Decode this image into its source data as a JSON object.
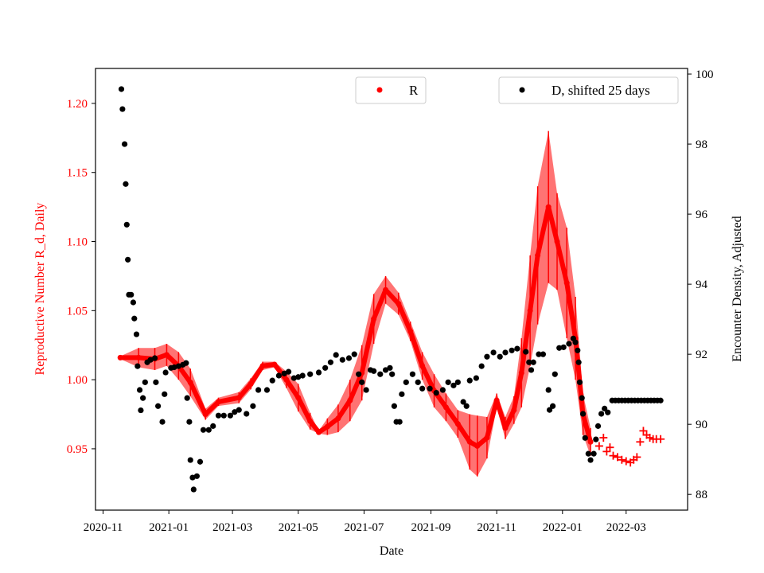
{
  "chart_data": {
    "type": "scatter",
    "xlabel": "Date",
    "ylabel_left": "Reproductive Number R_d, Daily",
    "ylabel_right": "Encounter Density, Adjusted",
    "xlim": [
      "2020-10-25",
      "2022-04-27"
    ],
    "ylim_left": [
      0.9056,
      1.2253
    ],
    "ylim_right": [
      87.55,
      100.16
    ],
    "x_ticks": [
      "2020-11",
      "2021-01",
      "2021-03",
      "2021-05",
      "2021-07",
      "2021-09",
      "2021-11",
      "2022-01",
      "2022-03"
    ],
    "y_ticks_left": [
      "0.95",
      "1.00",
      "1.05",
      "1.10",
      "1.15",
      "1.20"
    ],
    "y_ticks_right": [
      "88",
      "90",
      "92",
      "94",
      "96",
      "98",
      "100"
    ],
    "grid": false,
    "colors": {
      "R": "#ff0000",
      "D": "#000000",
      "left_axis_text": "#ff0000"
    },
    "legends": [
      {
        "label": "R",
        "color": "#ff0000",
        "placement": "top-center"
      },
      {
        "label": "D, shifted 25 days",
        "color": "#000000",
        "placement": "top-right"
      }
    ],
    "series": [
      {
        "name": "R",
        "axis": "left",
        "marker": "dot-with-errorbars",
        "points": [
          [
            "2020-11-17",
            1.016,
            0.001
          ],
          [
            "2020-12-04",
            1.016,
            0.007
          ],
          [
            "2020-12-19",
            1.015,
            0.008
          ],
          [
            "2020-12-30",
            1.018,
            0.008
          ],
          [
            "2021-01-10",
            1.01,
            0.01
          ],
          [
            "2021-01-21",
            0.998,
            0.01
          ],
          [
            "2021-02-04",
            0.975,
            0.004
          ],
          [
            "2021-02-16",
            0.984,
            0.003
          ],
          [
            "2021-03-07",
            0.987,
            0.004
          ],
          [
            "2021-03-18",
            0.997,
            0.004
          ],
          [
            "2021-03-29",
            1.01,
            0.003
          ],
          [
            "2021-04-09",
            1.011,
            0.002
          ],
          [
            "2021-04-20",
            1.0,
            0.006
          ],
          [
            "2021-05-01",
            0.987,
            0.01
          ],
          [
            "2021-05-12",
            0.97,
            0.006
          ],
          [
            "2021-05-20",
            0.962,
            0.001
          ],
          [
            "2021-05-28",
            0.966,
            0.006
          ],
          [
            "2021-06-07",
            0.972,
            0.01
          ],
          [
            "2021-06-18",
            0.985,
            0.015
          ],
          [
            "2021-06-29",
            1.005,
            0.02
          ],
          [
            "2021-07-10",
            1.044,
            0.018
          ],
          [
            "2021-07-21",
            1.065,
            0.01
          ],
          [
            "2021-08-02",
            1.055,
            0.008
          ],
          [
            "2021-08-13",
            1.035,
            0.007
          ],
          [
            "2021-08-24",
            1.01,
            0.01
          ],
          [
            "2021-09-04",
            0.992,
            0.012
          ],
          [
            "2021-09-15",
            0.98,
            0.01
          ],
          [
            "2021-09-26",
            0.968,
            0.01
          ],
          [
            "2021-10-07",
            0.955,
            0.02
          ],
          [
            "2021-10-14",
            0.952,
            0.022
          ],
          [
            "2021-10-23",
            0.958,
            0.015
          ],
          [
            "2021-11-01",
            0.985,
            0.005
          ],
          [
            "2021-11-09",
            0.965,
            0.008
          ],
          [
            "2021-11-17",
            0.978,
            0.01
          ],
          [
            "2021-11-24",
            1.005,
            0.025
          ],
          [
            "2021-12-02",
            1.05,
            0.04
          ],
          [
            "2021-12-09",
            1.09,
            0.05
          ],
          [
            "2021-12-19",
            1.125,
            0.055
          ],
          [
            "2021-12-27",
            1.1,
            0.035
          ],
          [
            "2022-01-05",
            1.07,
            0.04
          ],
          [
            "2022-01-13",
            1.03,
            0.03
          ],
          [
            "2022-01-20",
            0.975,
            0.015
          ],
          [
            "2022-01-27",
            0.955,
            0.01
          ]
        ]
      },
      {
        "name": "R",
        "axis": "left",
        "marker": "plus",
        "points": [
          [
            "2022-02-04",
            0.952
          ],
          [
            "2022-02-08",
            0.958
          ],
          [
            "2022-02-11",
            0.948
          ],
          [
            "2022-02-14",
            0.951
          ],
          [
            "2022-02-17",
            0.945
          ],
          [
            "2022-02-21",
            0.944
          ],
          [
            "2022-02-25",
            0.942
          ],
          [
            "2022-03-01",
            0.941
          ],
          [
            "2022-03-05",
            0.94
          ],
          [
            "2022-03-08",
            0.942
          ],
          [
            "2022-03-11",
            0.944
          ],
          [
            "2022-03-14",
            0.955
          ],
          [
            "2022-03-17",
            0.963
          ],
          [
            "2022-03-20",
            0.96
          ],
          [
            "2022-03-23",
            0.958
          ],
          [
            "2022-03-26",
            0.957
          ],
          [
            "2022-03-29",
            0.957
          ],
          [
            "2022-04-02",
            0.957
          ]
        ]
      },
      {
        "name": "D, shifted 25 days",
        "axis": "right",
        "marker": "dot",
        "points": [
          [
            "2020-11-18",
            99.57
          ],
          [
            "2020-11-19",
            99.0
          ],
          [
            "2020-11-21",
            98.0
          ],
          [
            "2020-11-22",
            96.86
          ],
          [
            "2020-11-23",
            95.7
          ],
          [
            "2020-11-24",
            94.7
          ],
          [
            "2020-11-25",
            93.7
          ],
          [
            "2020-11-27",
            93.7
          ],
          [
            "2020-11-29",
            93.48
          ],
          [
            "2020-11-30",
            93.02
          ],
          [
            "2020-12-02",
            92.57
          ],
          [
            "2020-12-03",
            91.66
          ],
          [
            "2020-12-05",
            90.98
          ],
          [
            "2020-12-06",
            90.4
          ],
          [
            "2020-12-08",
            90.75
          ],
          [
            "2020-12-10",
            91.2
          ],
          [
            "2020-12-12",
            91.77
          ],
          [
            "2020-12-15",
            91.84
          ],
          [
            "2020-12-19",
            91.89
          ],
          [
            "2020-12-20",
            91.2
          ],
          [
            "2020-12-22",
            90.52
          ],
          [
            "2020-12-26",
            90.07
          ],
          [
            "2020-12-28",
            90.86
          ],
          [
            "2020-12-29",
            91.48
          ],
          [
            "2021-01-03",
            91.61
          ],
          [
            "2021-01-06",
            91.63
          ],
          [
            "2021-01-10",
            91.66
          ],
          [
            "2021-01-14",
            91.7
          ],
          [
            "2021-01-17",
            91.75
          ],
          [
            "2021-01-18",
            90.75
          ],
          [
            "2021-01-20",
            90.07
          ],
          [
            "2021-01-21",
            88.98
          ],
          [
            "2021-01-23",
            88.48
          ],
          [
            "2021-01-24",
            88.14
          ],
          [
            "2021-01-27",
            88.52
          ],
          [
            "2021-01-30",
            88.93
          ],
          [
            "2021-02-02",
            89.84
          ],
          [
            "2021-02-07",
            89.84
          ],
          [
            "2021-02-11",
            89.95
          ],
          [
            "2021-02-16",
            90.25
          ],
          [
            "2021-02-21",
            90.25
          ],
          [
            "2021-02-27",
            90.25
          ],
          [
            "2021-03-03",
            90.35
          ],
          [
            "2021-03-07",
            90.41
          ],
          [
            "2021-03-14",
            90.3
          ],
          [
            "2021-03-20",
            90.52
          ],
          [
            "2021-03-25",
            90.98
          ],
          [
            "2021-04-02",
            90.98
          ],
          [
            "2021-04-07",
            91.25
          ],
          [
            "2021-04-13",
            91.39
          ],
          [
            "2021-04-18",
            91.45
          ],
          [
            "2021-04-22",
            91.5
          ],
          [
            "2021-04-27",
            91.32
          ],
          [
            "2021-05-01",
            91.35
          ],
          [
            "2021-05-05",
            91.39
          ],
          [
            "2021-05-12",
            91.43
          ],
          [
            "2021-05-20",
            91.48
          ],
          [
            "2021-05-26",
            91.61
          ],
          [
            "2021-05-31",
            91.77
          ],
          [
            "2021-06-05",
            91.98
          ],
          [
            "2021-06-11",
            91.84
          ],
          [
            "2021-06-17",
            91.89
          ],
          [
            "2021-06-22",
            92.0
          ],
          [
            "2021-06-26",
            91.43
          ],
          [
            "2021-06-29",
            91.2
          ],
          [
            "2021-07-03",
            90.98
          ],
          [
            "2021-07-07",
            91.55
          ],
          [
            "2021-07-10",
            91.52
          ],
          [
            "2021-07-16",
            91.43
          ],
          [
            "2021-07-21",
            91.55
          ],
          [
            "2021-07-25",
            91.61
          ],
          [
            "2021-07-27",
            91.43
          ],
          [
            "2021-07-29",
            90.52
          ],
          [
            "2021-07-31",
            90.07
          ],
          [
            "2021-08-03",
            90.07
          ],
          [
            "2021-08-05",
            90.86
          ],
          [
            "2021-08-09",
            91.2
          ],
          [
            "2021-08-15",
            91.43
          ],
          [
            "2021-08-20",
            91.2
          ],
          [
            "2021-08-24",
            91.02
          ],
          [
            "2021-08-31",
            91.02
          ],
          [
            "2021-09-06",
            90.9
          ],
          [
            "2021-09-12",
            90.98
          ],
          [
            "2021-09-17",
            91.2
          ],
          [
            "2021-09-22",
            91.11
          ],
          [
            "2021-09-26",
            91.2
          ],
          [
            "2021-10-01",
            90.64
          ],
          [
            "2021-10-04",
            90.52
          ],
          [
            "2021-10-07",
            91.25
          ],
          [
            "2021-10-13",
            91.32
          ],
          [
            "2021-10-18",
            91.66
          ],
          [
            "2021-10-23",
            91.93
          ],
          [
            "2021-10-29",
            92.05
          ],
          [
            "2021-11-04",
            91.93
          ],
          [
            "2021-11-09",
            92.05
          ],
          [
            "2021-11-15",
            92.11
          ],
          [
            "2021-11-20",
            92.16
          ],
          [
            "2021-11-28",
            92.07
          ],
          [
            "2021-12-01",
            91.77
          ],
          [
            "2021-12-03",
            91.55
          ],
          [
            "2021-12-05",
            91.77
          ],
          [
            "2021-12-10",
            92.0
          ],
          [
            "2021-12-14",
            92.0
          ],
          [
            "2021-12-19",
            90.98
          ],
          [
            "2021-12-20",
            90.41
          ],
          [
            "2021-12-23",
            90.52
          ],
          [
            "2021-12-25",
            91.43
          ],
          [
            "2021-12-29",
            92.18
          ],
          [
            "2022-01-02",
            92.2
          ],
          [
            "2022-01-07",
            92.3
          ],
          [
            "2022-01-11",
            92.45
          ],
          [
            "2022-01-13",
            92.34
          ],
          [
            "2022-01-15",
            92.11
          ],
          [
            "2022-01-16",
            91.77
          ],
          [
            "2022-01-17",
            91.2
          ],
          [
            "2022-01-19",
            90.75
          ],
          [
            "2022-01-20",
            90.3
          ],
          [
            "2022-01-22",
            89.61
          ],
          [
            "2022-01-25",
            89.16
          ],
          [
            "2022-01-27",
            88.98
          ],
          [
            "2022-01-30",
            89.16
          ],
          [
            "2022-02-01",
            89.57
          ],
          [
            "2022-02-03",
            89.95
          ],
          [
            "2022-02-06",
            90.3
          ],
          [
            "2022-02-09",
            90.45
          ],
          [
            "2022-02-12",
            90.34
          ],
          [
            "2022-02-16",
            90.68
          ],
          [
            "2022-02-19",
            90.68
          ],
          [
            "2022-02-22",
            90.68
          ],
          [
            "2022-02-25",
            90.68
          ],
          [
            "2022-02-28",
            90.68
          ],
          [
            "2022-03-03",
            90.68
          ],
          [
            "2022-03-06",
            90.68
          ],
          [
            "2022-03-09",
            90.68
          ],
          [
            "2022-03-12",
            90.68
          ],
          [
            "2022-03-15",
            90.68
          ],
          [
            "2022-03-18",
            90.68
          ],
          [
            "2022-03-21",
            90.68
          ],
          [
            "2022-03-24",
            90.68
          ],
          [
            "2022-03-27",
            90.68
          ],
          [
            "2022-03-30",
            90.68
          ],
          [
            "2022-04-02",
            90.68
          ]
        ]
      }
    ]
  }
}
